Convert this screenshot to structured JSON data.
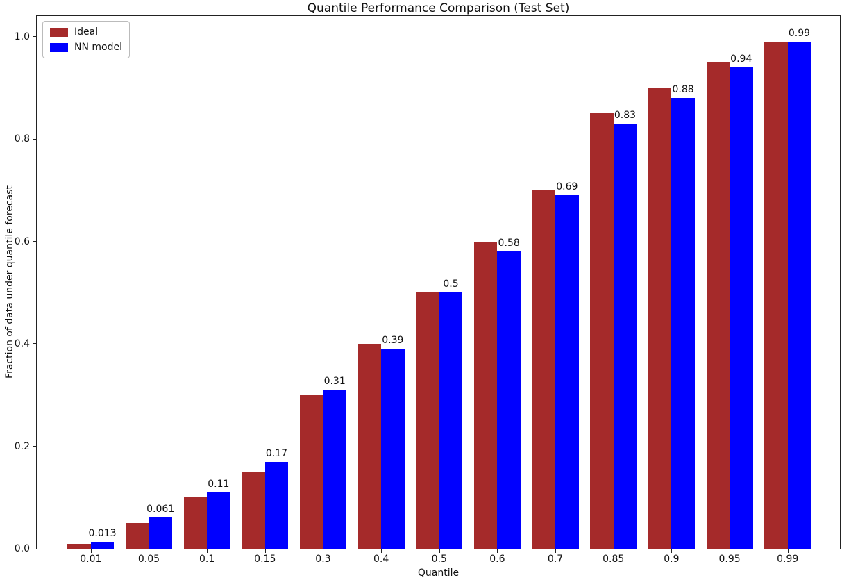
{
  "chart_data": {
    "type": "bar",
    "title": "Quantile Performance Comparison (Test Set)",
    "xlabel": "Quantile",
    "ylabel": "Fraction of data under quantile forecast",
    "categories": [
      "0.01",
      "0.05",
      "0.1",
      "0.15",
      "0.3",
      "0.4",
      "0.5",
      "0.6",
      "0.7",
      "0.85",
      "0.9",
      "0.95",
      "0.99"
    ],
    "series": [
      {
        "name": "Ideal",
        "color": "#a52a2a",
        "values": [
          0.01,
          0.05,
          0.1,
          0.15,
          0.3,
          0.4,
          0.5,
          0.6,
          0.7,
          0.85,
          0.9,
          0.95,
          0.99
        ]
      },
      {
        "name": "NN model",
        "color": "#0000ff",
        "values": [
          0.013,
          0.061,
          0.11,
          0.17,
          0.31,
          0.39,
          0.5,
          0.58,
          0.69,
          0.83,
          0.88,
          0.94,
          0.99
        ]
      }
    ],
    "bar_value_labels": [
      "0.013",
      "0.061",
      "0.11",
      "0.17",
      "0.31",
      "0.39",
      "0.5",
      "0.58",
      "0.69",
      "0.83",
      "0.88",
      "0.94",
      "0.99"
    ],
    "yticks": [
      "0.0",
      "0.2",
      "0.4",
      "0.6",
      "0.8",
      "1.0"
    ],
    "ylim": [
      0,
      1.04
    ],
    "grid": false,
    "legend_position": "upper left",
    "legend": [
      "Ideal",
      "NN model"
    ],
    "bar_width_units": 0.4,
    "text_color": "#111111",
    "spine_color": "#222222"
  }
}
